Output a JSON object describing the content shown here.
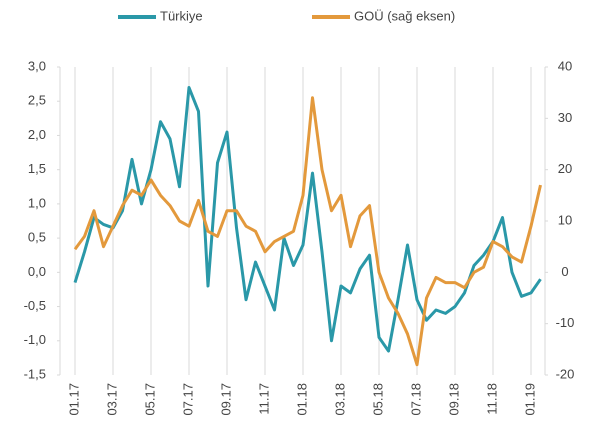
{
  "chart_data": {
    "type": "line",
    "categories": [
      "01.17",
      null,
      null,
      null,
      "03.17",
      null,
      null,
      null,
      "05.17",
      null,
      null,
      null,
      "07.17",
      null,
      null,
      null,
      "09.17",
      null,
      null,
      null,
      "11.17",
      null,
      null,
      null,
      "01.18",
      null,
      null,
      null,
      "03.18",
      null,
      null,
      null,
      "05.18",
      null,
      null,
      null,
      "07.18",
      null,
      null,
      null,
      "09.18",
      null,
      null,
      null,
      "11.18",
      null,
      null,
      null,
      "01.19",
      null
    ],
    "series": [
      {
        "name": "Türkiye",
        "color": "#2a98a8",
        "axis": "y",
        "values": [
          -0.15,
          0.3,
          0.8,
          0.7,
          0.65,
          0.9,
          1.65,
          1.0,
          1.5,
          2.2,
          1.95,
          1.25,
          2.7,
          2.35,
          -0.2,
          1.6,
          2.05,
          0.65,
          -0.4,
          0.15,
          -0.2,
          -0.55,
          0.5,
          0.1,
          0.4,
          1.45,
          0.3,
          -1.0,
          -0.2,
          -0.3,
          0.05,
          0.25,
          -0.95,
          -1.15,
          -0.4,
          0.4,
          -0.4,
          -0.7,
          -0.55,
          -0.6,
          -0.5,
          -0.3,
          0.1,
          0.25,
          0.45,
          0.8,
          0.0,
          -0.35,
          -0.3,
          -0.1
        ]
      },
      {
        "name": "GOÜ (sağ eksen)",
        "color": "#e3993c",
        "axis": "y2",
        "values": [
          4.5,
          7,
          12,
          5,
          9,
          13,
          16,
          15,
          18,
          15,
          13,
          10,
          9,
          14,
          8,
          7,
          12,
          12,
          9,
          8,
          4,
          6,
          7,
          8,
          15,
          34,
          20,
          12,
          15,
          5,
          11,
          13,
          0,
          -5,
          -8,
          -12,
          -18,
          -5,
          -1,
          -2,
          -2,
          -3,
          0,
          1,
          6,
          5,
          3,
          2,
          9,
          17
        ]
      }
    ],
    "ylim": [
      -1.5,
      3.0
    ],
    "yticks": [
      {
        "value": -1.5,
        "label": "-1,5"
      },
      {
        "value": -1.0,
        "label": "-1,0"
      },
      {
        "value": -0.5,
        "label": "-0,5"
      },
      {
        "value": 0,
        "label": "0,0"
      },
      {
        "value": 0.5,
        "label": "0,5"
      },
      {
        "value": 1.0,
        "label": "1,0"
      },
      {
        "value": 1.5,
        "label": "1,5"
      },
      {
        "value": 2.0,
        "label": "2,0"
      },
      {
        "value": 2.5,
        "label": "2,5"
      },
      {
        "value": 3.0,
        "label": "3,0"
      }
    ],
    "y2lim": [
      -20,
      40
    ],
    "y2ticks": [
      -20,
      -10,
      0,
      10,
      20,
      30,
      40
    ],
    "legend": "top"
  }
}
